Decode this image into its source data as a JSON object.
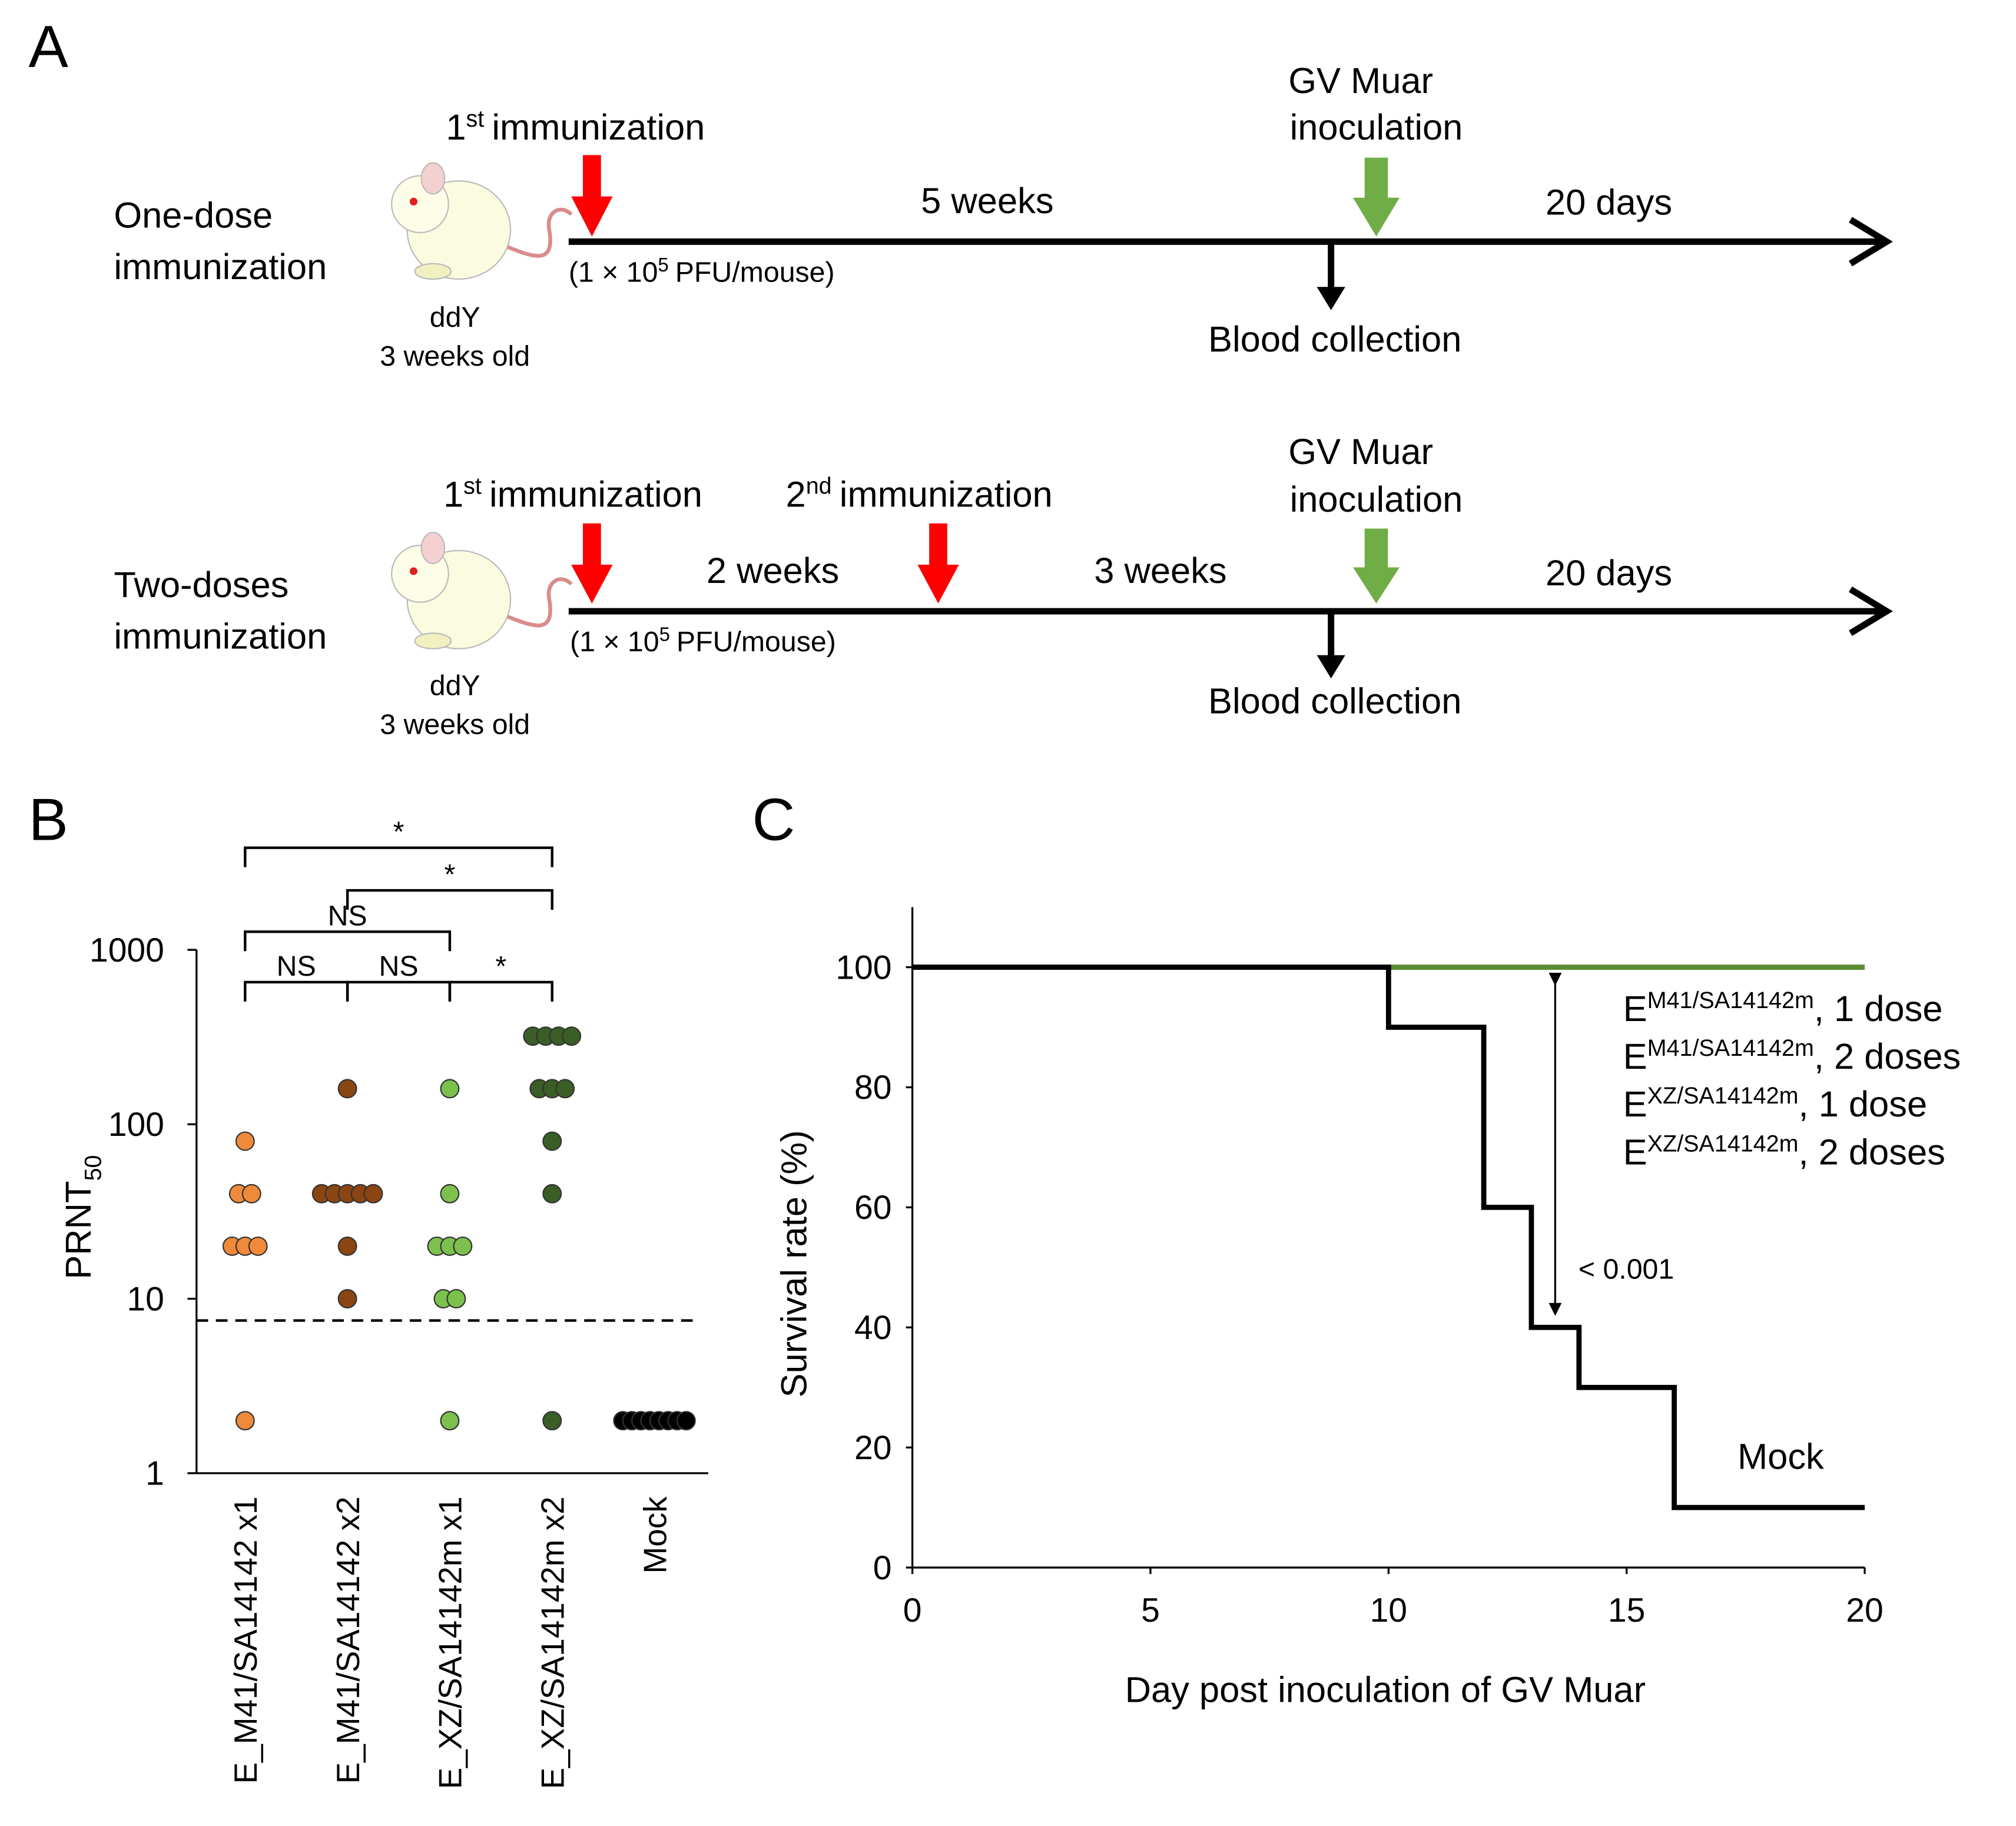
{
  "diagram": {
    "label": "A",
    "rows": [
      {
        "title": [
          "One-dose",
          "immunization"
        ],
        "strain": "ddY",
        "age": "3 weeks  old",
        "immunizations": [
          {
            "ordinal": "1",
            "suffix": "st",
            "text": "immunization"
          }
        ],
        "dose": {
          "pre": "(1 × 10",
          "sup": "5",
          "post": "PFU/mouse)"
        },
        "intervals": [
          "5 weeks",
          "20 days"
        ],
        "challenge": [
          "GV Muar",
          "inoculation"
        ],
        "sampling": "Blood collection"
      },
      {
        "title": [
          "Two-doses",
          "immunization"
        ],
        "strain": "ddY",
        "age": "3 weeks  old",
        "immunizations": [
          {
            "ordinal": "1",
            "suffix": "st",
            "text": "immunization"
          },
          {
            "ordinal": "2",
            "suffix": "nd",
            "text": "immunization"
          }
        ],
        "dose": {
          "pre": "(1 × 10",
          "sup": "5",
          "post": "PFU/mouse)"
        },
        "intervals": [
          "2 weeks",
          "3 weeks",
          "20 days"
        ],
        "challenge": [
          "GV Muar",
          "inoculation"
        ],
        "sampling": "Blood collection"
      }
    ]
  },
  "chart_data": [
    {
      "type": "strip",
      "panel": "B",
      "log_scale": true,
      "ylabel": {
        "text": "PRNT",
        "sub": "50"
      },
      "ylim": [
        1,
        1000
      ],
      "yticks": [
        1,
        10,
        100,
        1000
      ],
      "hline": 7.5,
      "series": [
        {
          "name": "E_M41/SA14142 x1",
          "color": "#f08a3a",
          "values": [
            80,
            40,
            40,
            20,
            20,
            20,
            2
          ]
        },
        {
          "name": "E_M41/SA14142 x2",
          "color": "#8b4513",
          "values": [
            160,
            40,
            40,
            40,
            40,
            40,
            20,
            10
          ]
        },
        {
          "name": "E_XZ/SA14142m x1",
          "color": "#7cc04d",
          "values": [
            160,
            40,
            20,
            20,
            20,
            10,
            10,
            2
          ]
        },
        {
          "name": "E_XZ/SA14142m x2",
          "color": "#3a5e25",
          "values": [
            320,
            320,
            320,
            320,
            160,
            160,
            160,
            80,
            40,
            2
          ]
        },
        {
          "name": "Mock",
          "color": "#000000",
          "values": [
            2,
            2,
            2,
            2,
            2,
            2,
            2,
            2
          ]
        }
      ],
      "comparisons": [
        {
          "label": "*",
          "between": [
            "E_M41/SA14142 x1",
            "E_XZ/SA14142m x2"
          ]
        },
        {
          "label": "*",
          "between": [
            "E_M41/SA14142 x2",
            "E_XZ/SA14142m x2"
          ]
        },
        {
          "label": "NS",
          "between": [
            "E_M41/SA14142 x1",
            "E_XZ/SA14142m x1"
          ]
        },
        {
          "label": "NS",
          "between": [
            "E_M41/SA14142 x1",
            "E_M41/SA14142 x2"
          ]
        },
        {
          "label": "NS",
          "between": [
            "E_M41/SA14142 x2",
            "E_XZ/SA14142m x1"
          ]
        },
        {
          "label": "*",
          "between": [
            "E_XZ/SA14142m x1",
            "E_XZ/SA14142m x2"
          ]
        }
      ]
    },
    {
      "type": "line",
      "panel": "C",
      "xlabel": "Day post inoculation  of GV Muar",
      "ylabel": "Survival rate (%)",
      "xlim": [
        0,
        20
      ],
      "xticks": [
        0,
        5,
        10,
        15,
        20
      ],
      "ylim": [
        0,
        110
      ],
      "yticks": [
        0,
        20,
        40,
        60,
        80,
        100
      ],
      "series": [
        {
          "color": "#5b8c32",
          "x": [
            0,
            20
          ],
          "values": [
            100,
            100
          ],
          "labels": [
            {
              "base": "E",
              "sup": "M41/SA14142m",
              "text": ", 1 dose"
            },
            {
              "base": "E",
              "sup": "M41/SA14142m",
              "text": ", 2 doses"
            },
            {
              "base": "E",
              "sup": "XZ/SA14142m",
              "text": ", 1 dose"
            },
            {
              "base": "E",
              "sup": "XZ/SA14142m",
              "text": ", 2 doses"
            }
          ]
        },
        {
          "name": "Mock",
          "color": "#000000",
          "x": [
            0,
            10,
            10,
            12,
            12,
            13,
            13,
            14,
            14,
            16,
            16,
            20
          ],
          "values": [
            100,
            100,
            90,
            90,
            60,
            60,
            40,
            40,
            30,
            30,
            10,
            10
          ]
        }
      ],
      "annotation": {
        "text": "< 0.001",
        "x": 13.5,
        "from": 98,
        "to": 43
      }
    }
  ]
}
